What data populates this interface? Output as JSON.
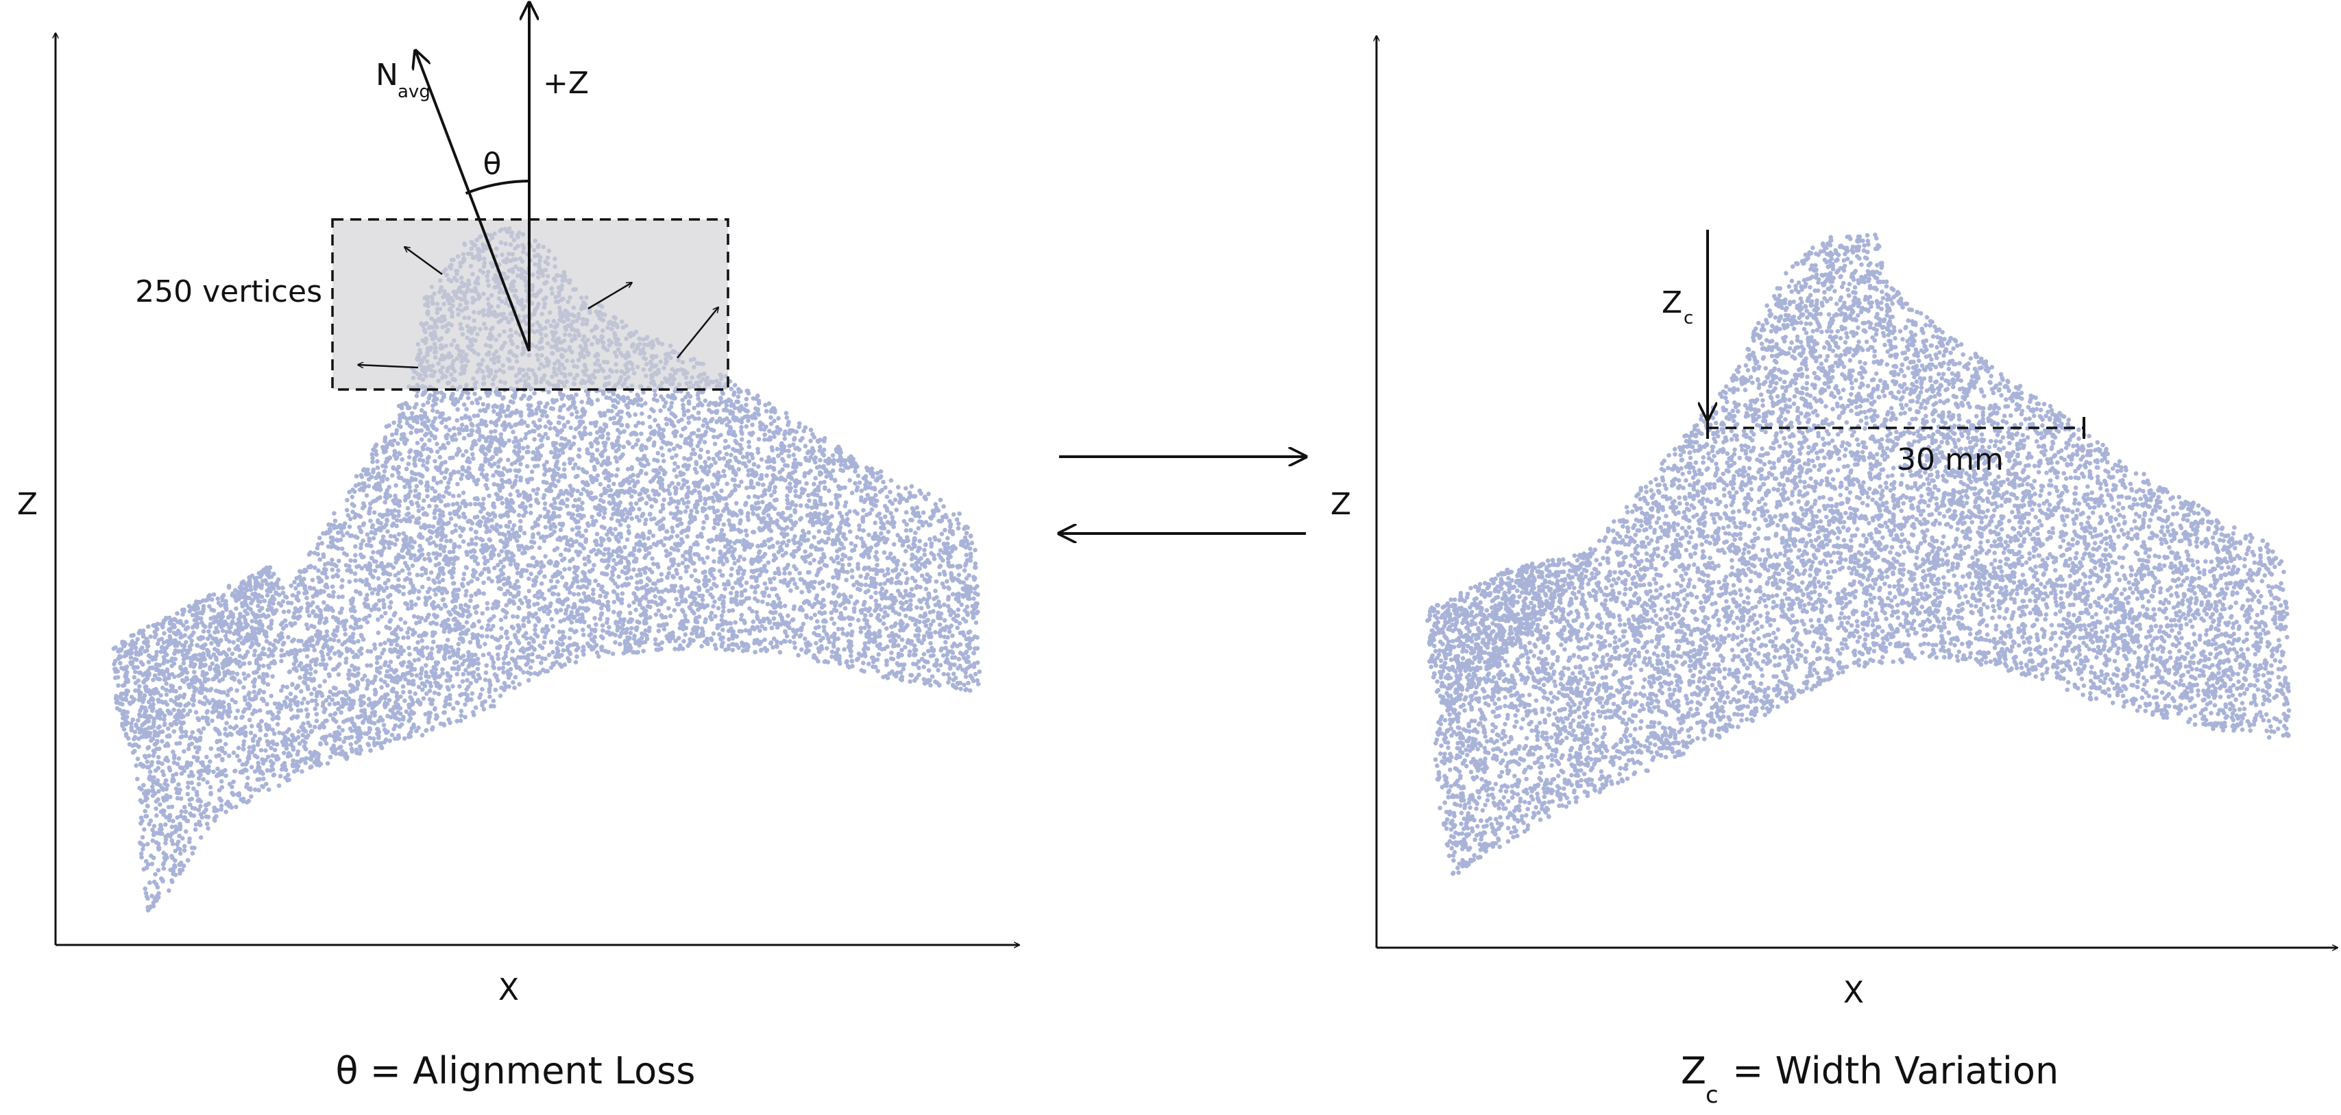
{
  "colors": {
    "points": "#a9b3d8",
    "ink": "#111111",
    "region": "#cfcfd4"
  },
  "left_panel": {
    "x_axis_label": "X",
    "z_axis_label": "Z",
    "plus_z_label": "+Z",
    "normal_label": "N",
    "normal_subscript": "avg",
    "angle_label": "θ",
    "region_label": "250 vertices",
    "caption": "θ = Alignment Loss"
  },
  "right_panel": {
    "x_axis_label": "X",
    "z_axis_label": "Z",
    "depth_label": "Z",
    "depth_subscript": "c",
    "width_label": "30 mm",
    "caption_main": "Z",
    "caption_subscript": "c",
    "caption_rest": " = Width Variation"
  }
}
